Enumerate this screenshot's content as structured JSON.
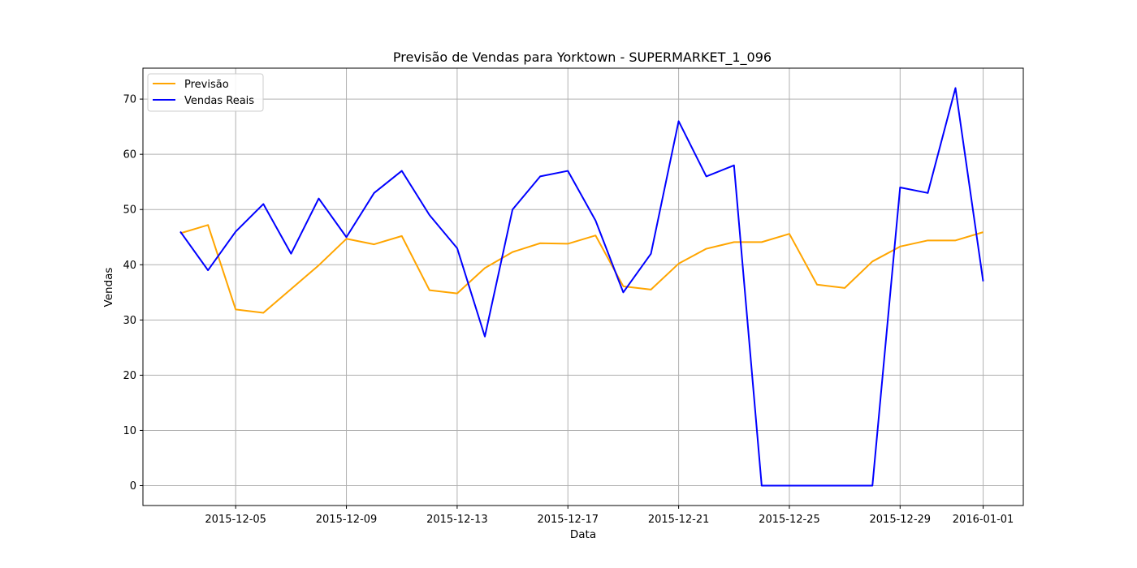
{
  "chart_data": {
    "type": "line",
    "title": "Previsão de Vendas para Yorktown - SUPERMARKET_1_096",
    "xlabel": "Data",
    "ylabel": "Vendas",
    "x": [
      "2015-12-03",
      "2015-12-04",
      "2015-12-05",
      "2015-12-06",
      "2015-12-07",
      "2015-12-08",
      "2015-12-09",
      "2015-12-10",
      "2015-12-11",
      "2015-12-12",
      "2015-12-13",
      "2015-12-14",
      "2015-12-15",
      "2015-12-16",
      "2015-12-17",
      "2015-12-18",
      "2015-12-19",
      "2015-12-20",
      "2015-12-21",
      "2015-12-22",
      "2015-12-23",
      "2015-12-24",
      "2015-12-25",
      "2015-12-26",
      "2015-12-27",
      "2015-12-28",
      "2015-12-29",
      "2015-12-30",
      "2015-12-31",
      "2016-01-01"
    ],
    "xticks": [
      "2015-12-05",
      "2015-12-09",
      "2015-12-13",
      "2015-12-17",
      "2015-12-21",
      "2015-12-25",
      "2015-12-29",
      "2016-01-01"
    ],
    "yticks": [
      0,
      10,
      20,
      30,
      40,
      50,
      60,
      70
    ],
    "xlim": [
      "2015-12-01.65",
      "2016-01-02.45"
    ],
    "ylim": [
      -3.6,
      75.6
    ],
    "grid": true,
    "legend_position": "top-left",
    "series": [
      {
        "name": "Previsão",
        "color": "#ffa500",
        "values": [
          45.7,
          47.2,
          31.9,
          31.3,
          35.6,
          39.9,
          44.7,
          43.7,
          45.2,
          35.4,
          34.8,
          39.4,
          42.3,
          43.9,
          43.8,
          45.3,
          36.1,
          35.5,
          40.2,
          42.9,
          44.1,
          44.1,
          45.6,
          36.4,
          35.8,
          40.6,
          43.3,
          44.4,
          44.4,
          45.9
        ]
      },
      {
        "name": "Vendas Reais",
        "color": "#0000ff",
        "values": [
          46,
          39,
          46,
          51,
          42,
          52,
          45,
          53,
          57,
          49,
          43,
          27,
          50,
          56,
          57,
          48,
          35,
          42,
          66,
          56,
          58,
          0,
          0,
          0,
          0,
          0,
          54,
          53,
          72,
          37
        ]
      }
    ]
  }
}
